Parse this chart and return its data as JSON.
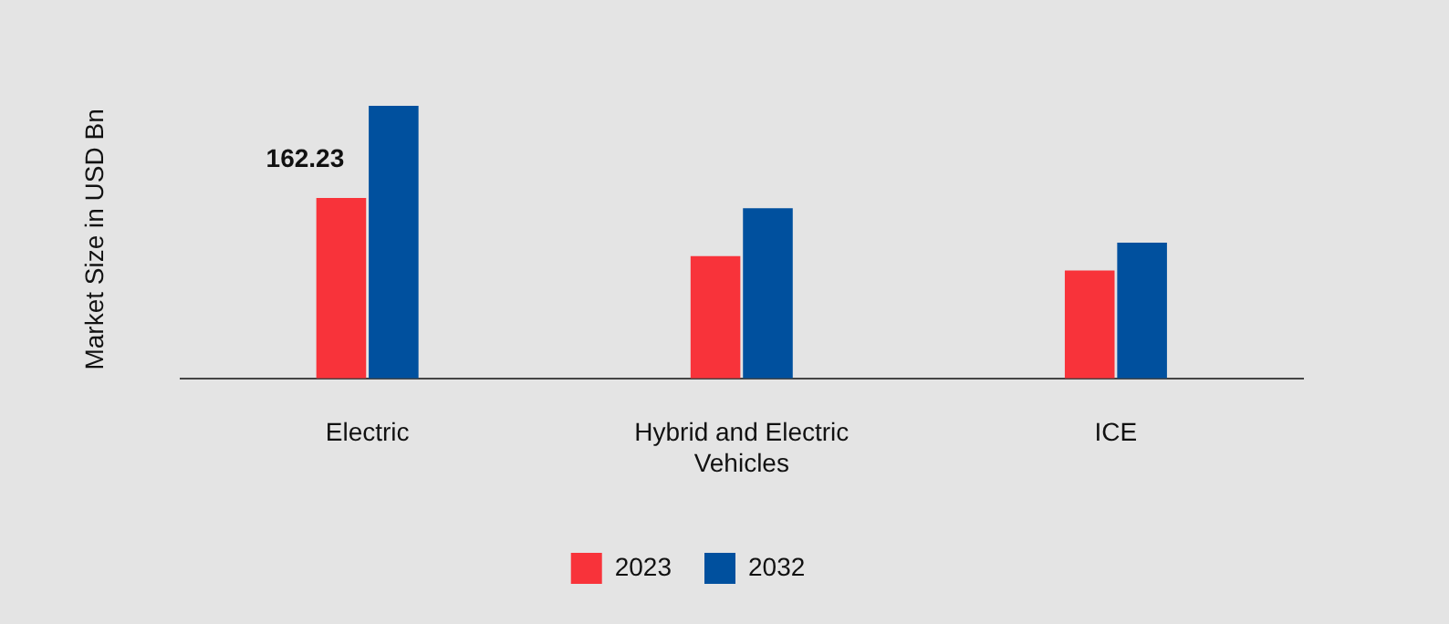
{
  "chart_data": {
    "type": "bar",
    "ylabel": "Market Size in USD Bn",
    "categories": [
      "Electric",
      "Hybrid and Electric Vehicles",
      "ICE"
    ],
    "series": [
      {
        "name": "2023",
        "color": "#f8333a",
        "values": [
          162.23,
          110,
          97
        ],
        "value_labels": [
          "162.23",
          null,
          null
        ]
      },
      {
        "name": "2032",
        "color": "#00509e",
        "values": [
          245,
          153,
          122
        ]
      }
    ],
    "tick_labels": "x",
    "legend": "bottom",
    "grid": false
  }
}
